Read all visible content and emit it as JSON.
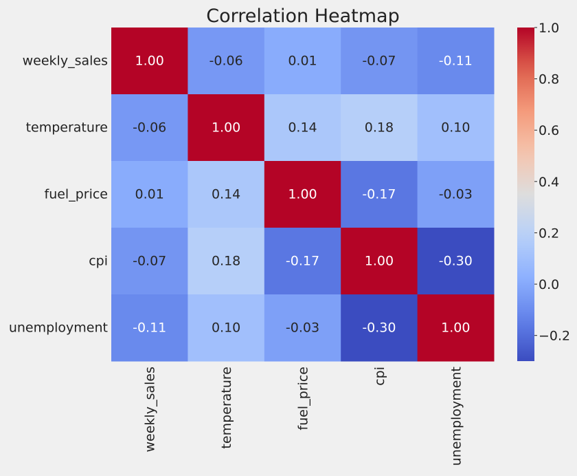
{
  "chart_data": {
    "type": "heatmap",
    "title": "Correlation Heatmap",
    "xlabel": "",
    "ylabel": "",
    "row_labels": [
      "weekly_sales",
      "temperature",
      "fuel_price",
      "cpi",
      "unemployment"
    ],
    "col_labels": [
      "weekly_sales",
      "temperature",
      "fuel_price",
      "cpi",
      "unemployment"
    ],
    "values": [
      [
        1.0,
        -0.06,
        0.01,
        -0.07,
        -0.11
      ],
      [
        -0.06,
        1.0,
        0.14,
        0.18,
        0.1
      ],
      [
        0.01,
        0.14,
        1.0,
        -0.17,
        -0.03
      ],
      [
        -0.07,
        0.18,
        -0.17,
        1.0,
        -0.3
      ],
      [
        -0.11,
        0.1,
        -0.03,
        -0.3,
        1.0
      ]
    ],
    "value_format": "2 decimals",
    "colormap": "coolwarm",
    "colorbar": {
      "range": [
        -0.3,
        1.0
      ],
      "ticks": [
        -0.2,
        0.0,
        0.2,
        0.4,
        0.6,
        0.8,
        1.0
      ],
      "tick_labels": [
        "−0.2",
        "0.0",
        "0.2",
        "0.4",
        "0.6",
        "0.8",
        "1.0"
      ]
    },
    "grid": false,
    "colors": {
      "background": "#f0f0f0",
      "text": "#222222",
      "annotation_light": "#ffffff",
      "annotation_dark": "#262626"
    }
  }
}
